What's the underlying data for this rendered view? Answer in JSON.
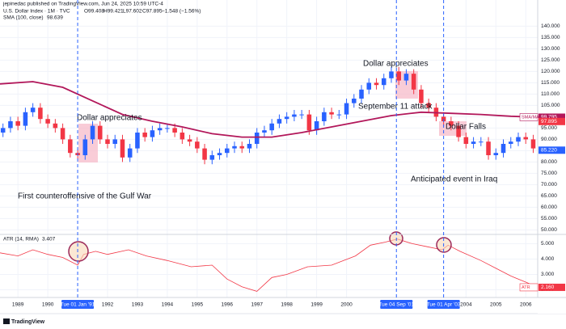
{
  "chart_data": {
    "type": "candlestick",
    "published": "jepinedac published on TradingView.com, Jun 24, 2025 10:59 UTC-4",
    "title": "U.S. Dollar Index · 1M · TVC",
    "ohlc_text": [
      "O99.408",
      "H99.421",
      "L97.602",
      "C97.895",
      "−1.548 (−1.56%)"
    ],
    "up_color": "#2962ff",
    "down_color": "#f23645",
    "x": [
      1988.5,
      1988.75,
      1989,
      1989.25,
      1989.5,
      1989.75,
      1990,
      1990.25,
      1990.5,
      1990.75,
      1991,
      1991.25,
      1991.5,
      1991.75,
      1992,
      1992.25,
      1992.5,
      1992.75,
      1993,
      1993.25,
      1993.5,
      1993.75,
      1994,
      1994.25,
      1994.5,
      1994.75,
      1995,
      1995.25,
      1995.5,
      1995.75,
      1996,
      1996.25,
      1996.5,
      1996.75,
      1997,
      1997.25,
      1997.5,
      1997.75,
      1998,
      1998.25,
      1998.5,
      1998.75,
      1999,
      1999.25,
      1999.5,
      1999.75,
      2000,
      2000.25,
      2000.5,
      2000.75,
      2001,
      2001.25,
      2001.5,
      2001.75,
      2002,
      2002.25,
      2002.5,
      2002.75,
      2003,
      2003.25,
      2003.5,
      2003.75,
      2004,
      2004.25,
      2004.5,
      2004.75,
      2005,
      2005.25,
      2005.5,
      2005.75,
      2006,
      2006.25
    ],
    "open": [
      93,
      95,
      98,
      96,
      102,
      104,
      99,
      97,
      95,
      90,
      84,
      83,
      90,
      96,
      90,
      88,
      90,
      82,
      86,
      93,
      91,
      94,
      95,
      95,
      93,
      90,
      89,
      86,
      81,
      83,
      84,
      86,
      87,
      86,
      88,
      93,
      94,
      97,
      99,
      100,
      101,
      101,
      94,
      98,
      102,
      101,
      101,
      106,
      108,
      112,
      115,
      114,
      117,
      120,
      116,
      119,
      112,
      106,
      104,
      100,
      98,
      96,
      91,
      88,
      89,
      89,
      83,
      84,
      88,
      89,
      91,
      90
    ],
    "high": [
      97,
      100,
      100,
      104,
      106,
      106,
      101,
      99,
      97,
      92,
      86,
      92,
      98,
      98,
      92,
      92,
      92,
      88,
      95,
      95,
      96,
      97,
      97,
      97,
      95,
      92,
      91,
      88,
      85,
      86,
      88,
      89,
      89,
      90,
      95,
      96,
      99,
      101,
      102,
      103,
      103,
      103,
      100,
      104,
      104,
      103,
      108,
      110,
      114,
      117,
      117,
      119,
      122,
      122,
      121,
      121,
      114,
      108,
      106,
      102,
      100,
      98,
      93,
      91,
      91,
      91,
      86,
      90,
      91,
      93,
      93,
      92
    ],
    "low": [
      91,
      93,
      94,
      94,
      100,
      97,
      95,
      93,
      88,
      82,
      81,
      81,
      88,
      88,
      86,
      86,
      80,
      80,
      84,
      89,
      89,
      92,
      93,
      91,
      88,
      87,
      84,
      79,
      79,
      81,
      82,
      84,
      84,
      84,
      86,
      91,
      92,
      95,
      97,
      98,
      99,
      92,
      92,
      96,
      99,
      99,
      99,
      104,
      106,
      110,
      112,
      112,
      115,
      114,
      114,
      110,
      104,
      102,
      98,
      96,
      94,
      89,
      86,
      86,
      87,
      81,
      81,
      82,
      86,
      87,
      88,
      84
    ],
    "close": [
      95,
      98,
      96,
      102,
      104,
      99,
      97,
      95,
      90,
      84,
      83,
      90,
      96,
      90,
      88,
      90,
      82,
      86,
      93,
      91,
      94,
      95,
      95,
      93,
      90,
      89,
      86,
      81,
      83,
      84,
      86,
      87,
      86,
      88,
      93,
      94,
      97,
      99,
      100,
      101,
      101,
      94,
      98,
      102,
      101,
      101,
      106,
      108,
      112,
      115,
      114,
      117,
      120,
      116,
      119,
      112,
      106,
      104,
      100,
      98,
      96,
      91,
      88,
      89,
      89,
      83,
      84,
      88,
      89,
      91,
      90,
      86
    ],
    "xlim": [
      1988.4,
      2006.4
    ],
    "xticks": [
      1989,
      1990,
      1992,
      1993,
      1994,
      1995,
      1996,
      1997,
      1998,
      1999,
      2000,
      2004,
      2005,
      2006
    ],
    "ylim": [
      48,
      148
    ],
    "yticks": [
      {
        "value": 50,
        "label": "50.000"
      },
      {
        "value": 55,
        "label": "55.000"
      },
      {
        "value": 60,
        "label": "60.000"
      },
      {
        "value": 65,
        "label": "65.000"
      },
      {
        "value": 70,
        "label": "70.000"
      },
      {
        "value": 75,
        "label": "75.000"
      },
      {
        "value": 80,
        "label": "80.000"
      },
      {
        "value": 85,
        "label": "85.000"
      },
      {
        "value": 90,
        "label": "90.000"
      },
      {
        "value": 95,
        "label": "95.000"
      },
      {
        "value": 100,
        "label": "100.000"
      },
      {
        "value": 105,
        "label": "105.000"
      },
      {
        "value": 110,
        "label": "110.000"
      },
      {
        "value": 115,
        "label": "115.000"
      },
      {
        "value": 120,
        "label": "120.000"
      },
      {
        "value": 125,
        "label": "125.000"
      },
      {
        "value": 130,
        "label": "130.000"
      },
      {
        "value": 135,
        "label": "135.000"
      },
      {
        "value": 140,
        "label": "140.000"
      }
    ],
    "price_tags": [
      {
        "value": 97.895,
        "label": "97.895",
        "color": "#f23645"
      },
      {
        "value": 85.22,
        "label": "85.220",
        "color": "#2962ff"
      }
    ],
    "sma": {
      "name": "SMA (100, close)",
      "last": 98.639,
      "color": "#b2175a",
      "x": [
        1988.4,
        1989.5,
        1990.5,
        1991.5,
        1992.5,
        1993.5,
        1994.5,
        1995.5,
        1996.5,
        1997.5,
        1998.5,
        1999.5,
        2000.5,
        2001.5,
        2002.5,
        2003.5,
        2004.5,
        2005.5,
        2006.4
      ],
      "values": [
        114.5,
        115.5,
        113,
        107,
        101,
        98,
        95.5,
        92.5,
        91,
        91,
        93,
        95.5,
        98,
        100.5,
        102,
        101.5,
        101,
        100.2,
        99.8
      ],
      "tag": {
        "value": 99.795,
        "label": "99.795",
        "name": "SMA/MA"
      }
    },
    "atr": {
      "name": "ATR (14, RMA)",
      "last": 3.407,
      "tag_name": "ATR",
      "color": "#f23645",
      "x": [
        1988.4,
        1989,
        1989.5,
        1990,
        1990.5,
        1991,
        1991.2,
        1991.6,
        1992,
        1992.7,
        1993.3,
        1994,
        1994.8,
        1995.5,
        1996,
        1996.5,
        1997,
        1997.5,
        1998,
        1998.7,
        1999.5,
        2000.3,
        2000.8,
        2001.3,
        2001.7,
        2002.2,
        2002.7,
        2003.2,
        2003.4,
        2003.8,
        2004.5,
        2005,
        2005.5,
        2006,
        2006.4
      ],
      "values": [
        4.4,
        4.2,
        4.6,
        4.3,
        4.1,
        3.6,
        4.3,
        4.5,
        4.3,
        4.6,
        4.2,
        3.9,
        3.5,
        3.6,
        2.7,
        2.2,
        1.9,
        2.8,
        3.0,
        3.5,
        3.6,
        4.2,
        4.9,
        5.1,
        5.3,
        5.0,
        4.8,
        4.6,
        4.9,
        4.5,
        3.9,
        3.4,
        2.9,
        2.5,
        2.16
      ],
      "value_labels": {
        "34": "2.160"
      },
      "ylim": [
        1.5,
        5.6
      ],
      "yticks": [
        {
          "value": 2,
          "label": "2.000"
        },
        {
          "value": 3,
          "label": "3.000"
        },
        {
          "value": 4,
          "label": "4.000"
        },
        {
          "value": 5,
          "label": "5.000"
        }
      ]
    },
    "events": [
      {
        "x": 1991.0,
        "label": "Tue 01 Jan '91"
      },
      {
        "x": 2001.67,
        "label": "Tue 04 Sep '01"
      },
      {
        "x": 2003.25,
        "label": "Tue 01 Apr '03"
      }
    ],
    "annotations": [
      "Dollar appreciates",
      "First counteroffensive of the Gulf War",
      "Dollar appreciates",
      "September 11 attack",
      "Dollar Falls",
      "Anticipated event in Iraq"
    ],
    "footer": "TradingView"
  }
}
